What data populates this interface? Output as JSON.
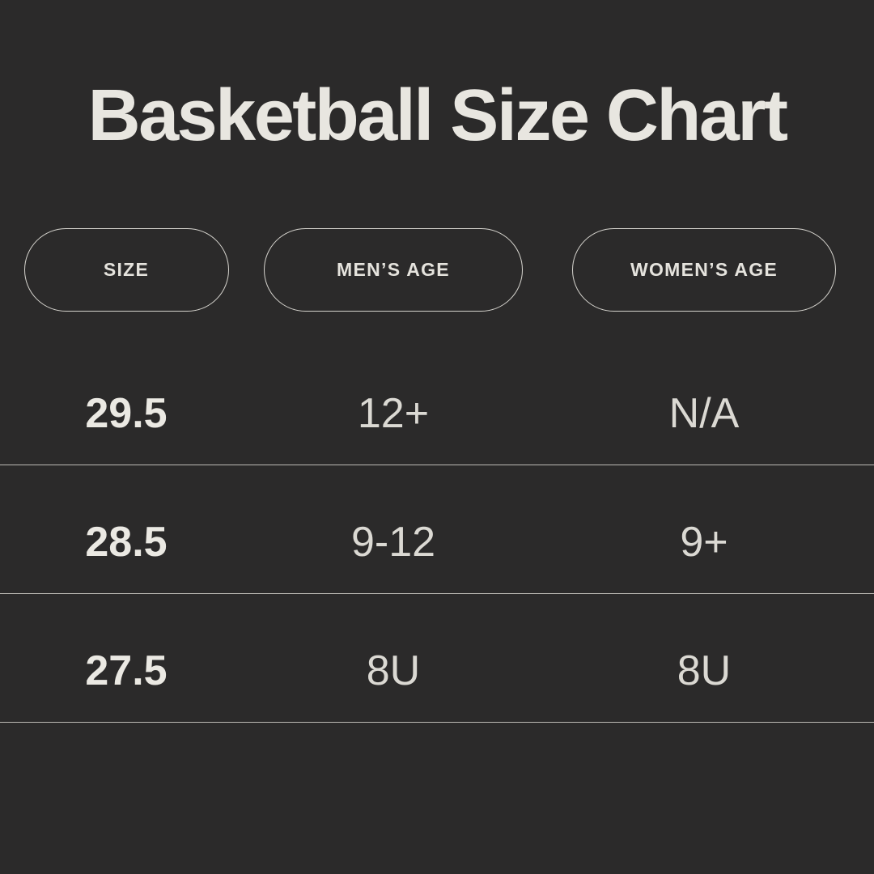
{
  "page": {
    "background_color": "#2b2a2a",
    "text_color": "#e8e6e0",
    "divider_color": "#d6d4ce"
  },
  "title": "Basketball Size Chart",
  "table": {
    "headers": [
      {
        "label": "SIZE"
      },
      {
        "label": "MEN’S AGE"
      },
      {
        "label": "WOMEN’S AGE"
      }
    ],
    "rows": [
      {
        "size": "29.5",
        "mens_age": "12+",
        "womens_age": "N/A"
      },
      {
        "size": "28.5",
        "mens_age": "9-12",
        "womens_age": "9+"
      },
      {
        "size": "27.5",
        "mens_age": "8U",
        "womens_age": "8U"
      }
    ]
  },
  "chart_data": {
    "type": "table",
    "title": "Basketball Size Chart",
    "columns": [
      "SIZE",
      "MEN’S AGE",
      "WOMEN’S AGE"
    ],
    "rows": [
      [
        "29.5",
        "12+",
        "N/A"
      ],
      [
        "28.5",
        "9-12",
        "9+"
      ],
      [
        "27.5",
        "8U",
        "8U"
      ]
    ],
    "layout_hints": {
      "header_style": "outlined pill capsules",
      "row_dividers": true,
      "theme": "dark background, off-white text"
    }
  }
}
